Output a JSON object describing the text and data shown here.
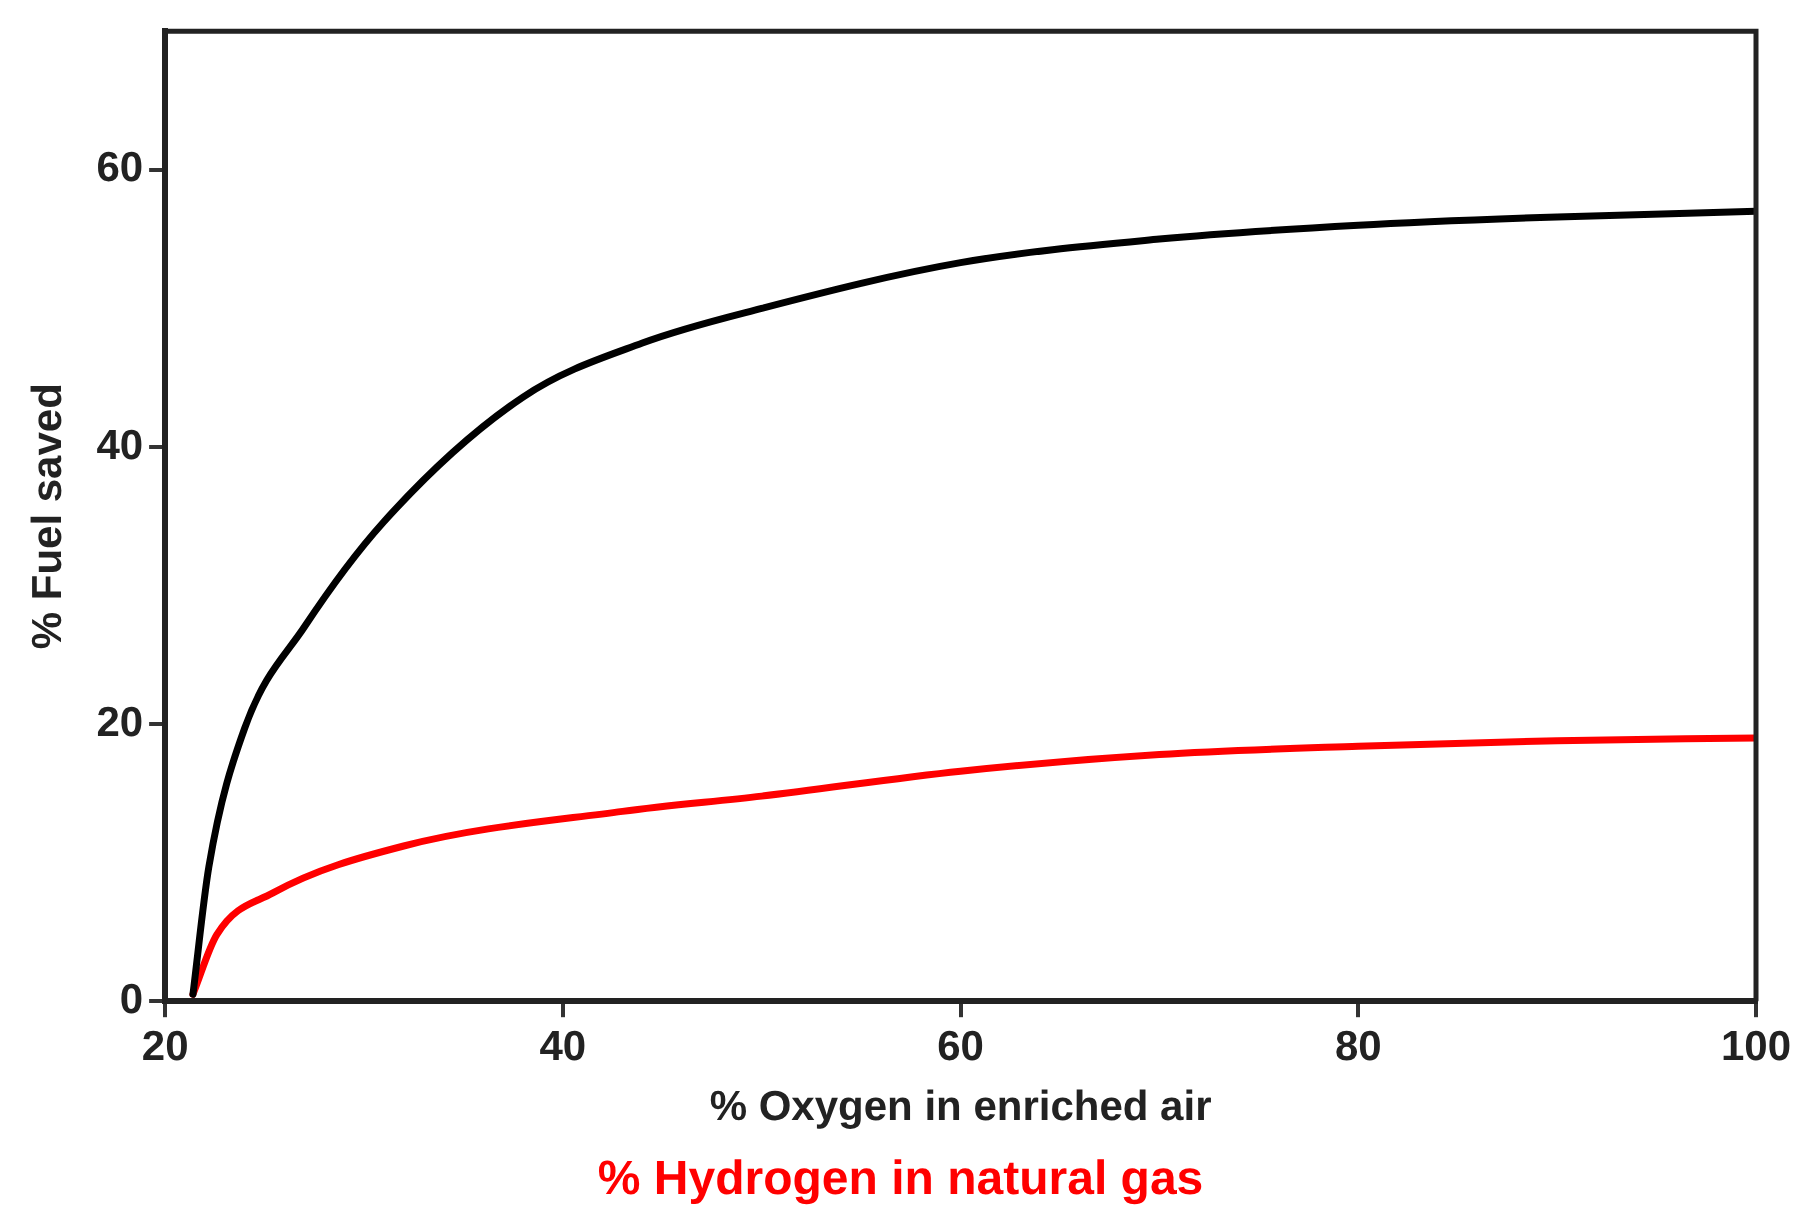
{
  "chart_data": {
    "type": "line",
    "xlabel": "% Oxygen in enriched air",
    "ylabel": "% Fuel saved",
    "annotations": [
      "% Hydrogen in natural gas"
    ],
    "xlim": [
      20,
      100
    ],
    "xticks": [
      20,
      40,
      60,
      80,
      100
    ],
    "ylim": [
      0,
      70
    ],
    "yticks": [
      0,
      20,
      40,
      60
    ],
    "grid": false,
    "legend": false,
    "marker": "none",
    "line_style": "solid",
    "series": [
      {
        "color": "#000000",
        "x": [
          21.4,
          22.2,
          24,
          27,
          31,
          38,
          44,
          50,
          60,
          70,
          80,
          90,
          100
        ],
        "values": [
          0.5,
          9.7,
          19.7,
          27,
          34.6,
          43.6,
          47.5,
          50,
          53.3,
          55,
          56,
          56.6,
          57
        ]
      },
      {
        "color": "#ff0000",
        "x": [
          21.4,
          22.6,
          25.4,
          32,
          43,
          50,
          60,
          70,
          80,
          90,
          100
        ],
        "values": [
          0.5,
          4.8,
          7.8,
          11.2,
          13.7,
          14.8,
          16.6,
          17.8,
          18.4,
          18.8,
          19
        ]
      }
    ]
  }
}
